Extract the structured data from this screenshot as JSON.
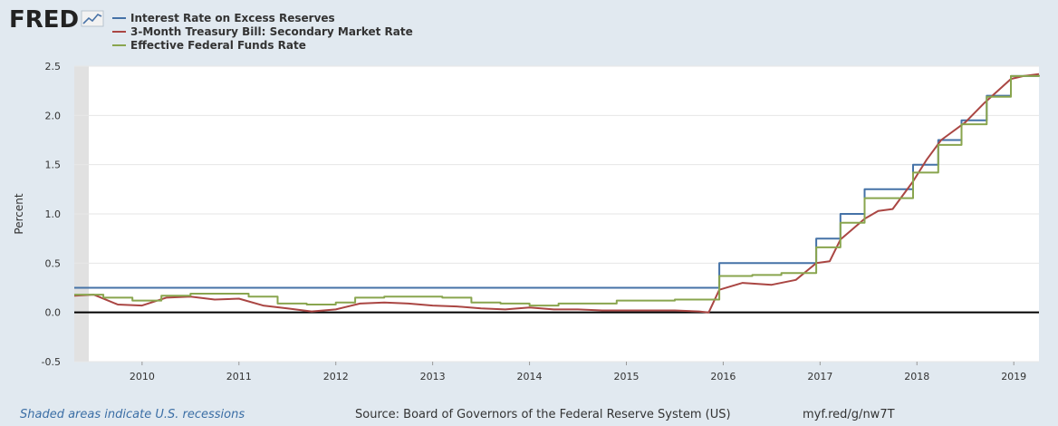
{
  "brand": {
    "logo_text": "FRED"
  },
  "footer": {
    "recession_note": "Shaded areas indicate U.S. recessions",
    "source": "Source: Board of Governors of the Federal Reserve System (US)",
    "short_url": "myf.red/g/nw7T"
  },
  "colors": {
    "ioer": "#4572a7",
    "tbill": "#aa4643",
    "effr": "#89a54e",
    "recession": "#e1e1e1"
  },
  "chart_data": {
    "type": "line",
    "title": "",
    "ylabel": "Percent",
    "xlabel": "",
    "ylim": [
      -0.5,
      2.5
    ],
    "xlim": [
      2009.3,
      2019.26
    ],
    "y_ticks": [
      "2.5",
      "2.0",
      "1.5",
      "1.0",
      "0.5",
      "0.0",
      "-0.5"
    ],
    "x_ticks": [
      "2010",
      "2011",
      "2012",
      "2013",
      "2014",
      "2015",
      "2016",
      "2017",
      "2018",
      "2019"
    ],
    "recessions": [
      [
        2009.3,
        2009.45
      ]
    ],
    "legend_position": "top-left",
    "series": [
      {
        "name": "Interest Rate on Excess Reserves",
        "color": "#4572a7",
        "step": true,
        "points": [
          [
            2009.3,
            0.25
          ],
          [
            2015.96,
            0.25
          ],
          [
            2015.96,
            0.5
          ],
          [
            2016.96,
            0.5
          ],
          [
            2016.96,
            0.75
          ],
          [
            2017.21,
            0.75
          ],
          [
            2017.21,
            1.0
          ],
          [
            2017.46,
            1.0
          ],
          [
            2017.46,
            1.25
          ],
          [
            2017.96,
            1.25
          ],
          [
            2017.96,
            1.5
          ],
          [
            2018.22,
            1.5
          ],
          [
            2018.22,
            1.75
          ],
          [
            2018.46,
            1.75
          ],
          [
            2018.46,
            1.95
          ],
          [
            2018.72,
            1.95
          ],
          [
            2018.72,
            2.2
          ],
          [
            2018.97,
            2.2
          ],
          [
            2018.97,
            2.4
          ],
          [
            2019.26,
            2.4
          ]
        ]
      },
      {
        "name": "3-Month Treasury Bill: Secondary Market Rate",
        "color": "#aa4643",
        "step": false,
        "points": [
          [
            2009.3,
            0.17
          ],
          [
            2009.5,
            0.18
          ],
          [
            2009.75,
            0.08
          ],
          [
            2010.0,
            0.07
          ],
          [
            2010.25,
            0.15
          ],
          [
            2010.5,
            0.16
          ],
          [
            2010.75,
            0.13
          ],
          [
            2011.0,
            0.14
          ],
          [
            2011.25,
            0.07
          ],
          [
            2011.5,
            0.04
          ],
          [
            2011.75,
            0.01
          ],
          [
            2012.0,
            0.03
          ],
          [
            2012.25,
            0.09
          ],
          [
            2012.5,
            0.1
          ],
          [
            2012.75,
            0.09
          ],
          [
            2013.0,
            0.07
          ],
          [
            2013.25,
            0.06
          ],
          [
            2013.5,
            0.04
          ],
          [
            2013.75,
            0.03
          ],
          [
            2014.0,
            0.05
          ],
          [
            2014.25,
            0.03
          ],
          [
            2014.5,
            0.03
          ],
          [
            2014.75,
            0.02
          ],
          [
            2015.0,
            0.02
          ],
          [
            2015.25,
            0.02
          ],
          [
            2015.5,
            0.02
          ],
          [
            2015.75,
            0.01
          ],
          [
            2015.85,
            0.0
          ],
          [
            2015.96,
            0.23
          ],
          [
            2016.2,
            0.3
          ],
          [
            2016.5,
            0.28
          ],
          [
            2016.75,
            0.33
          ],
          [
            2016.96,
            0.5
          ],
          [
            2017.1,
            0.52
          ],
          [
            2017.21,
            0.74
          ],
          [
            2017.46,
            0.95
          ],
          [
            2017.6,
            1.03
          ],
          [
            2017.75,
            1.05
          ],
          [
            2017.96,
            1.33
          ],
          [
            2018.1,
            1.55
          ],
          [
            2018.25,
            1.75
          ],
          [
            2018.5,
            1.93
          ],
          [
            2018.7,
            2.13
          ],
          [
            2018.97,
            2.37
          ],
          [
            2019.1,
            2.4
          ],
          [
            2019.26,
            2.42
          ]
        ]
      },
      {
        "name": "Effective Federal Funds Rate",
        "color": "#89a54e",
        "step": true,
        "points": [
          [
            2009.3,
            0.18
          ],
          [
            2009.6,
            0.15
          ],
          [
            2009.9,
            0.12
          ],
          [
            2010.2,
            0.17
          ],
          [
            2010.5,
            0.19
          ],
          [
            2010.8,
            0.19
          ],
          [
            2011.1,
            0.16
          ],
          [
            2011.4,
            0.09
          ],
          [
            2011.7,
            0.08
          ],
          [
            2012.0,
            0.1
          ],
          [
            2012.2,
            0.15
          ],
          [
            2012.5,
            0.16
          ],
          [
            2012.8,
            0.16
          ],
          [
            2013.1,
            0.15
          ],
          [
            2013.4,
            0.1
          ],
          [
            2013.7,
            0.09
          ],
          [
            2014.0,
            0.07
          ],
          [
            2014.3,
            0.09
          ],
          [
            2014.6,
            0.09
          ],
          [
            2014.9,
            0.12
          ],
          [
            2015.2,
            0.12
          ],
          [
            2015.5,
            0.13
          ],
          [
            2015.8,
            0.13
          ],
          [
            2015.96,
            0.37
          ],
          [
            2016.3,
            0.38
          ],
          [
            2016.6,
            0.4
          ],
          [
            2016.96,
            0.66
          ],
          [
            2017.21,
            0.91
          ],
          [
            2017.46,
            1.16
          ],
          [
            2017.96,
            1.42
          ],
          [
            2018.22,
            1.7
          ],
          [
            2018.46,
            1.91
          ],
          [
            2018.72,
            2.19
          ],
          [
            2018.97,
            2.4
          ],
          [
            2019.26,
            2.41
          ]
        ]
      }
    ]
  }
}
